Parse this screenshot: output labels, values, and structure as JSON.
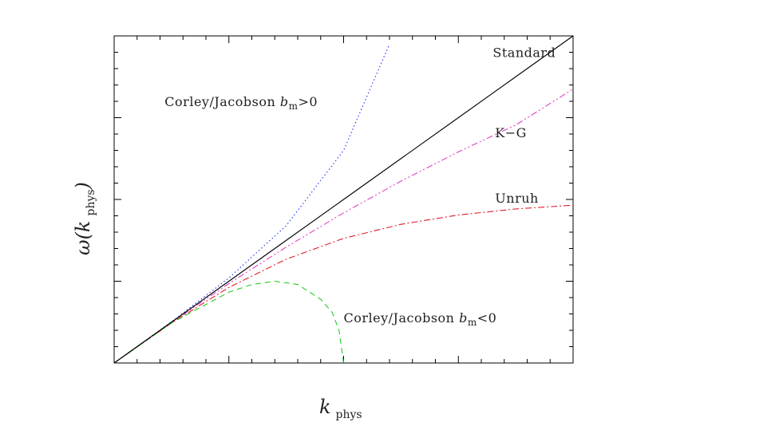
{
  "chart_data": {
    "type": "line",
    "title": "",
    "xlabel": {
      "main": "k",
      "subscript": "phys"
    },
    "ylabel": {
      "main": "ω(k",
      "subscript": "phys",
      "close": ")"
    },
    "xlim": [
      0,
      2
    ],
    "ylim": [
      0,
      2
    ],
    "grid": false,
    "tick_labels": false,
    "series": [
      {
        "name": "Standard",
        "color": "#000000",
        "dash": "solid",
        "x": [
          0,
          0.25,
          0.5,
          0.75,
          1.0,
          1.25,
          1.5,
          1.75,
          2.0
        ],
        "y": [
          0,
          0.25,
          0.5,
          0.75,
          1.0,
          1.25,
          1.5,
          1.75,
          2.0
        ]
      },
      {
        "name": "K-G",
        "color": "#e040c0",
        "dash": "dash-dot-dot",
        "x": [
          0,
          0.25,
          0.5,
          0.75,
          1.0,
          1.25,
          1.5,
          1.75,
          2.0
        ],
        "y": [
          0,
          0.248,
          0.486,
          0.709,
          0.918,
          1.112,
          1.291,
          1.455,
          1.675
        ]
      },
      {
        "name": "Unruh",
        "color": "#e0202a",
        "dash": "dash-dot",
        "x": [
          0,
          0.25,
          0.5,
          0.75,
          1.0,
          1.25,
          1.5,
          1.75,
          2.0
        ],
        "y": [
          0,
          0.245,
          0.462,
          0.635,
          0.762,
          0.848,
          0.905,
          0.942,
          0.965
        ]
      },
      {
        "name": "Corley/Jacobson b_m>0",
        "color": "#2233ff",
        "dash": "dotted",
        "x": [
          0,
          0.25,
          0.5,
          0.75,
          1.0,
          1.2
        ],
        "y": [
          0,
          0.252,
          0.52,
          0.84,
          1.3,
          1.95
        ]
      },
      {
        "name": "Corley/Jacobson b_m<0",
        "color": "#22cc22",
        "dash": "dashed",
        "x": [
          0,
          0.25,
          0.5,
          0.6,
          0.7,
          0.8,
          0.9,
          0.95,
          0.98,
          1.0
        ],
        "y": [
          0,
          0.245,
          0.433,
          0.48,
          0.5,
          0.48,
          0.39,
          0.31,
          0.2,
          0
        ]
      }
    ],
    "annotations": [
      {
        "text": "Standard",
        "x": 1.65,
        "y": 1.87
      },
      {
        "text": "Corley/Jacobson ",
        "sym": "b",
        "sub": "m",
        "tail": ">0",
        "x": 0.22,
        "y": 1.57
      },
      {
        "text": "K−G",
        "x": 1.66,
        "y": 1.38
      },
      {
        "text": "Unruh",
        "x": 1.66,
        "y": 0.98
      },
      {
        "text": "Corley/Jacobson ",
        "sym": "b",
        "sub": "m",
        "tail": "<0",
        "x": 1.0,
        "y": 0.25
      }
    ]
  }
}
